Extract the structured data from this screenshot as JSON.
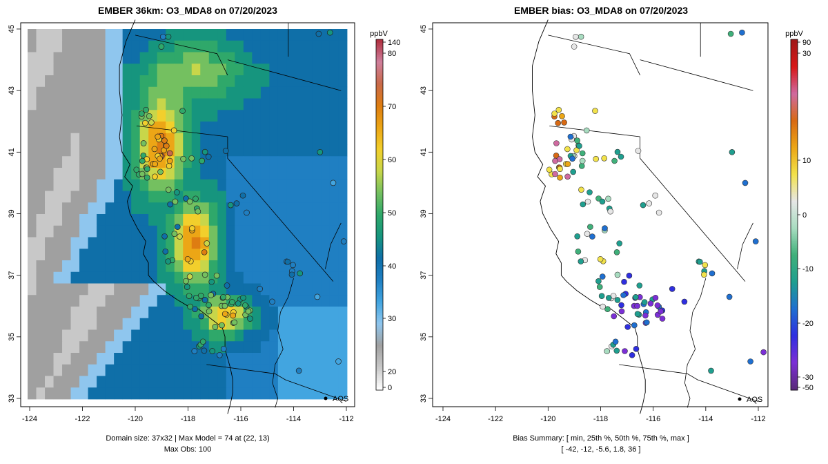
{
  "panels": [
    {
      "id": "left",
      "title": "EMBER 36km: O3_MDA8 on 07/20/2023",
      "legend_unit": "ppbV",
      "colorbar_ticks": [
        "140",
        "80",
        "70",
        "60",
        "50",
        "40",
        "30",
        "20",
        "0"
      ],
      "footer_line1": "Domain size: 37x32 | Max Model = 74 at (22, 13)",
      "footer_line2": "Max Obs: 100",
      "station_label": "AQS"
    },
    {
      "id": "right",
      "title": "EMBER bias: O3_MDA8 on 07/20/2023",
      "legend_unit": "ppbV",
      "colorbar_ticks": [
        "90",
        "30",
        "10",
        "0",
        "-10",
        "-20",
        "-30",
        "-50"
      ],
      "footer_line1": "Bias Summary: [ min, 25th %, 50th %, 75th %, max ]",
      "footer_line2": "[ -42,   -12,   -5.6,   1.8,   36 ]",
      "station_label": "AQS"
    }
  ],
  "axes": {
    "x_ticks": [
      "-124",
      "-122",
      "-120",
      "-118",
      "-116",
      "-114",
      "-112"
    ],
    "y_ticks": [
      "45",
      "43",
      "41",
      "39",
      "37",
      "35",
      "33"
    ],
    "lon_range": [
      -124.3,
      -111.6
    ],
    "lat_range": [
      32.7,
      45.2
    ]
  },
  "colors": {
    "model_scale": [
      "#ffffff",
      "#c8c8c8",
      "#a0a0a0",
      "#8fc6ee",
      "#42a5e0",
      "#1f7fc2",
      "#0f6fa8",
      "#16957e",
      "#2fa86a",
      "#74c060",
      "#c8d64a",
      "#f2cf2c",
      "#eca616",
      "#de7d12",
      "#c96a4a",
      "#cf7f9c",
      "#b03040"
    ],
    "bias_scale": [
      "#5a2a7a",
      "#7b2fd6",
      "#2f2fe0",
      "#1f6fd0",
      "#1f9f8f",
      "#3fb07a",
      "#a8dcc0",
      "#e6e6e6",
      "#f2e24a",
      "#eca616",
      "#d86a14",
      "#cf6aa0",
      "#d81818",
      "#a01818"
    ]
  }
}
